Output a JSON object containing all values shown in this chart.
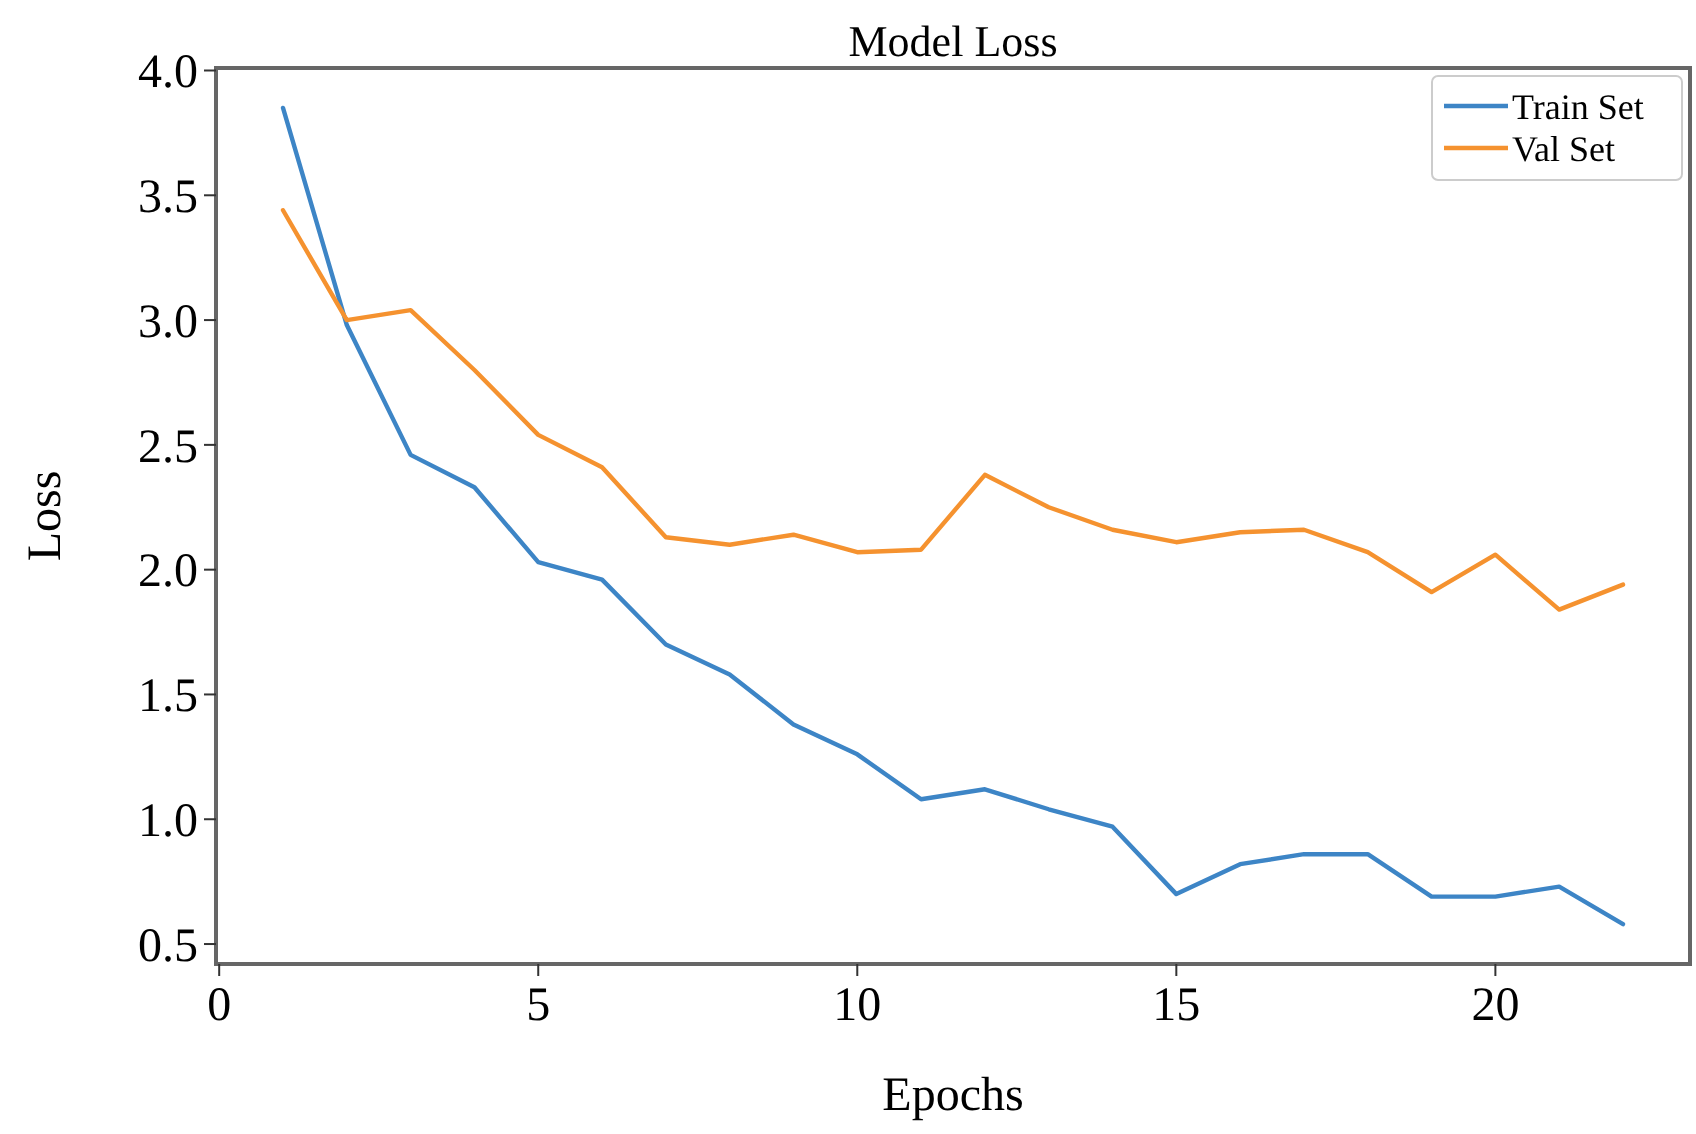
{
  "chart_data": {
    "type": "line",
    "title": "Model Loss",
    "xlabel": "Epochs",
    "ylabel": "Loss",
    "x": [
      1,
      2,
      3,
      4,
      5,
      6,
      7,
      8,
      9,
      10,
      11,
      12,
      13,
      14,
      15,
      16,
      17,
      18,
      19,
      20,
      21,
      22
    ],
    "series": [
      {
        "name": "Train Set",
        "color": "#3d85c6",
        "values": [
          3.85,
          2.98,
          2.46,
          2.33,
          2.03,
          1.96,
          1.7,
          1.58,
          1.38,
          1.26,
          1.08,
          1.12,
          1.04,
          0.97,
          0.7,
          0.82,
          0.86,
          0.86,
          0.69,
          0.69,
          0.73,
          0.58
        ]
      },
      {
        "name": "Val Set",
        "color": "#f5922f",
        "values": [
          3.44,
          3.0,
          3.04,
          2.8,
          2.54,
          2.41,
          2.13,
          2.1,
          2.14,
          2.07,
          2.08,
          2.38,
          2.25,
          2.16,
          2.11,
          2.15,
          2.16,
          2.07,
          1.91,
          2.06,
          1.84,
          1.94
        ]
      }
    ],
    "xlim": [
      -0.05,
      23.05
    ],
    "xticks": [
      0,
      5,
      10,
      15,
      20
    ],
    "ylim": [
      0.42,
      4.01
    ],
    "yticks": [
      {
        "value": 0.5,
        "label": "0.5"
      },
      {
        "value": 1,
        "label": "1.0"
      },
      {
        "value": 1.5,
        "label": "1.5"
      },
      {
        "value": 2,
        "label": "2.0"
      },
      {
        "value": 2.5,
        "label": "2.5"
      },
      {
        "value": 3,
        "label": "3.0"
      },
      {
        "value": 3.5,
        "label": "3.5"
      },
      {
        "value": 4,
        "label": "4.0"
      }
    ],
    "legend": "top right",
    "grid": false,
    "line_style": "solid"
  }
}
